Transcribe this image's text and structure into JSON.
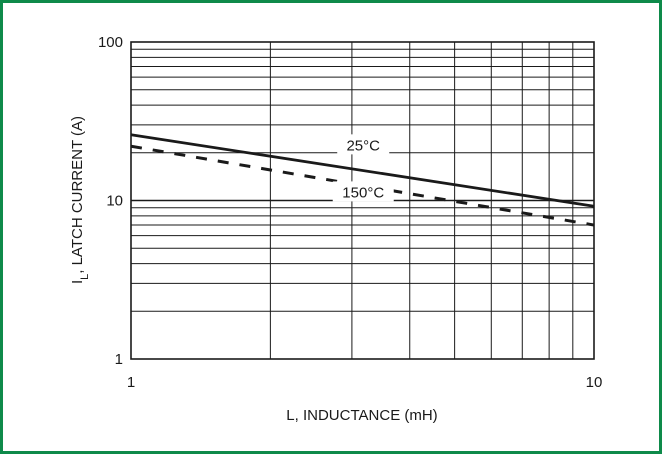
{
  "chart_data": {
    "type": "line",
    "xlabel": "L, INDUCTANCE (mH)",
    "ylabel_main": "I",
    "ylabel_sub": "L",
    "ylabel_rest": ", LATCH CURRENT (A)",
    "x_scale": "log",
    "y_scale": "log",
    "xlim": [
      1,
      10
    ],
    "ylim": [
      1,
      100
    ],
    "x_ticks": [
      1,
      10
    ],
    "x_tick_labels": [
      "1",
      "10"
    ],
    "y_ticks": [
      1,
      10,
      100
    ],
    "y_tick_labels": [
      "1",
      "10",
      "100"
    ],
    "grid": true,
    "legend": "inline labels",
    "series": [
      {
        "name": "25°C",
        "style": "solid",
        "x": [
          1,
          10
        ],
        "y": [
          26,
          9.2
        ]
      },
      {
        "name": "150°C",
        "style": "dashed",
        "x": [
          1,
          10
        ],
        "y": [
          22,
          7
        ]
      }
    ],
    "colors": {
      "frame": "#0e8a4a",
      "grid": "#1a1a1a",
      "line": "#1a1a1a"
    }
  }
}
